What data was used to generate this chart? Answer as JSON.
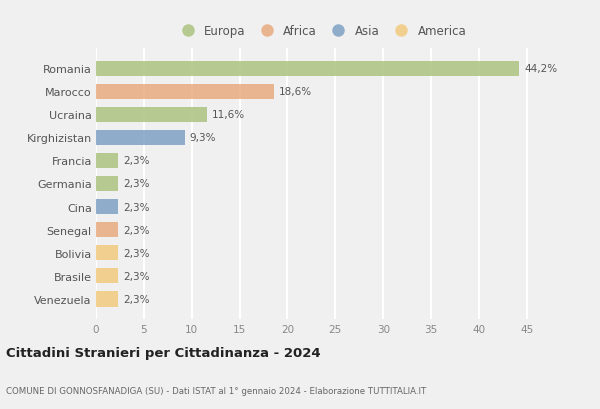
{
  "categories": [
    "Romania",
    "Marocco",
    "Ucraina",
    "Kirghizistan",
    "Francia",
    "Germania",
    "Cina",
    "Senegal",
    "Bolivia",
    "Brasile",
    "Venezuela"
  ],
  "values": [
    44.2,
    18.6,
    11.6,
    9.3,
    2.3,
    2.3,
    2.3,
    2.3,
    2.3,
    2.3,
    2.3
  ],
  "labels": [
    "44,2%",
    "18,6%",
    "11,6%",
    "9,3%",
    "2,3%",
    "2,3%",
    "2,3%",
    "2,3%",
    "2,3%",
    "2,3%",
    "2,3%"
  ],
  "colors": [
    "#a8c17c",
    "#e8a87c",
    "#a8c17c",
    "#7a9fc2",
    "#a8c17c",
    "#a8c17c",
    "#7a9fc2",
    "#e8a87c",
    "#f0c87a",
    "#f0c87a",
    "#f0c87a"
  ],
  "legend_labels": [
    "Europa",
    "Africa",
    "Asia",
    "America"
  ],
  "legend_colors": [
    "#a8c17c",
    "#e8a87c",
    "#7a9fc2",
    "#f0c87a"
  ],
  "title": "Cittadini Stranieri per Cittadinanza - 2024",
  "subtitle": "COMUNE DI GONNOSFANADIGA (SU) - Dati ISTAT al 1° gennaio 2024 - Elaborazione TUTTITALIA.IT",
  "xlim": [
    0,
    47
  ],
  "xticks": [
    0,
    5,
    10,
    15,
    20,
    25,
    30,
    35,
    40,
    45
  ],
  "background_color": "#f0f0f0",
  "grid_color": "#ffffff",
  "bar_height": 0.65,
  "bar_alpha": 0.82
}
